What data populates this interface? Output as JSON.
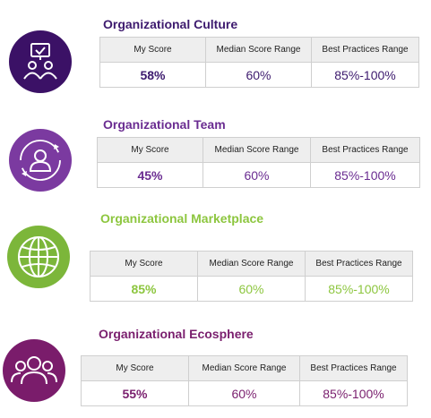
{
  "sections": [
    {
      "title": "Organizational Culture",
      "icon": "presentation-people-icon",
      "accent": "#3d1a6e",
      "circle_color": "#3b1166",
      "headers": [
        "My Score",
        "Median Score Range",
        "Best Practices Range"
      ],
      "values": [
        "58%",
        "60%",
        "85%-100%"
      ]
    },
    {
      "title": "Organizational Team",
      "icon": "person-cycle-icon",
      "accent": "#6a2c91",
      "circle_color": "#7b3aa0",
      "headers": [
        "My Score",
        "Median Score Range",
        "Best Practices Range"
      ],
      "values": [
        "45%",
        "60%",
        "85%-100%"
      ]
    },
    {
      "title": "Organizational Marketplace",
      "icon": "globe-icon",
      "accent": "#8dc63f",
      "circle_color": "#7cb63a",
      "headers": [
        "My Score",
        "Median Score Range",
        "Best Practices Range"
      ],
      "values": [
        "85%",
        "60%",
        "85%-100%"
      ]
    },
    {
      "title": "Organizational Ecosphere",
      "icon": "group-people-icon",
      "accent": "#7a1f6e",
      "circle_color": "#7a1c6b",
      "headers": [
        "My Score",
        "Median Score Range",
        "Best Practices Range"
      ],
      "values": [
        "55%",
        "60%",
        "85%-100%"
      ]
    }
  ]
}
